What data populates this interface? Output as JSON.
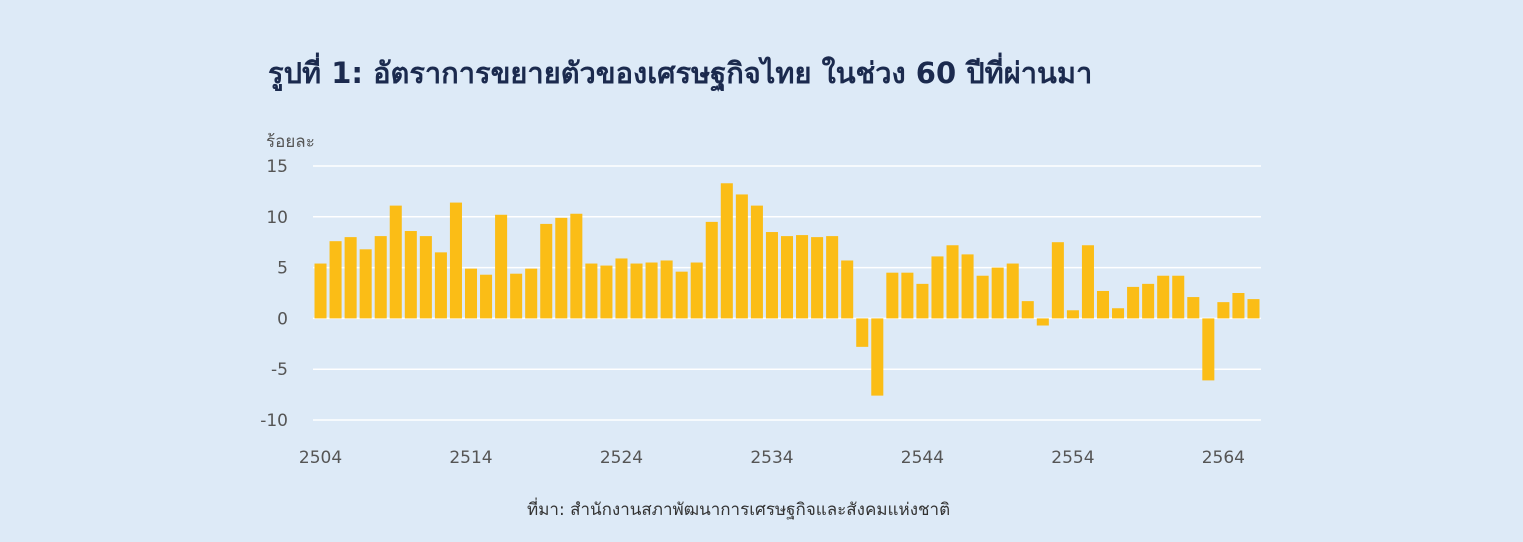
{
  "chart_data": {
    "type": "bar",
    "title": "รูปที่ 1: อัตราการขยายตัวของเศรษฐกิจไทย ในช่วง 60 ปีที่ผ่านมา",
    "ylabel": "ร้อยละ",
    "xlabel": "",
    "ylim": [
      -10,
      15
    ],
    "yticks": [
      "15",
      "10",
      "5",
      "0",
      "-5",
      "-10"
    ],
    "xticks": [
      "2504",
      "2514",
      "2524",
      "2534",
      "2544",
      "2554",
      "2564"
    ],
    "source": "ที่มา: สำนักงานสภาพัฒนาการเศรษฐกิจและสังคมแห่งชาติ",
    "grid": true,
    "legend": "none",
    "bar_color": "#fbbd16",
    "background_color": "#ddeaf7",
    "x": [
      2504,
      2505,
      2506,
      2507,
      2508,
      2509,
      2510,
      2511,
      2512,
      2513,
      2514,
      2515,
      2516,
      2517,
      2518,
      2519,
      2520,
      2521,
      2522,
      2523,
      2524,
      2525,
      2526,
      2527,
      2528,
      2529,
      2530,
      2531,
      2532,
      2533,
      2534,
      2535,
      2536,
      2537,
      2538,
      2539,
      2540,
      2541,
      2542,
      2543,
      2544,
      2545,
      2546,
      2547,
      2548,
      2549,
      2550,
      2551,
      2552,
      2553,
      2554,
      2555,
      2556,
      2557,
      2558,
      2559,
      2560,
      2561,
      2562,
      2563,
      2564,
      2565,
      2566
    ],
    "values": [
      5.4,
      7.6,
      8.0,
      6.8,
      8.1,
      11.1,
      8.6,
      8.1,
      6.5,
      11.4,
      4.9,
      4.3,
      10.2,
      4.4,
      4.9,
      9.3,
      9.9,
      10.3,
      5.4,
      5.2,
      5.9,
      5.4,
      5.5,
      5.7,
      4.6,
      5.5,
      9.5,
      13.3,
      12.2,
      11.1,
      8.5,
      8.1,
      8.2,
      8.0,
      8.1,
      5.7,
      -2.8,
      -7.6,
      4.5,
      4.5,
      3.4,
      6.1,
      7.2,
      6.3,
      4.2,
      5.0,
      5.4,
      1.7,
      -0.7,
      7.5,
      0.8,
      7.2,
      2.7,
      1.0,
      3.1,
      3.4,
      4.2,
      4.2,
      2.1,
      -6.1,
      1.6,
      2.5,
      1.9
    ]
  }
}
